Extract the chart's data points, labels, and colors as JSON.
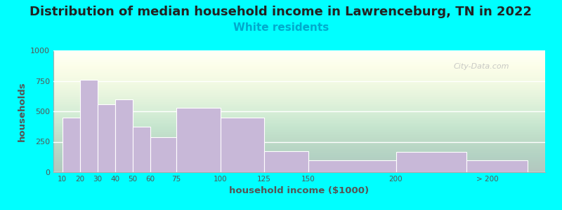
{
  "title": "Distribution of median household income in Lawrenceburg, TN in 2022",
  "subtitle": "White residents",
  "xlabel": "household income ($1000)",
  "ylabel": "households",
  "background_outer": "#00FFFF",
  "bar_color": "#C8B8D8",
  "categories": [
    "10",
    "20",
    "30",
    "40",
    "50",
    "60",
    "75",
    "100",
    "125",
    "150",
    "200",
    "> 200"
  ],
  "values": [
    450,
    760,
    555,
    600,
    375,
    290,
    530,
    450,
    170,
    95,
    165,
    95
  ],
  "ylim": [
    0,
    1000
  ],
  "yticks": [
    0,
    250,
    500,
    750,
    1000
  ],
  "title_fontsize": 13,
  "subtitle_fontsize": 11,
  "subtitle_color": "#00AACC",
  "watermark": "City-Data.com",
  "bar_left_edges": [
    10,
    20,
    30,
    40,
    50,
    60,
    75,
    100,
    125,
    150,
    200,
    240
  ],
  "bar_widths": [
    10,
    10,
    10,
    10,
    10,
    15,
    25,
    25,
    25,
    50,
    40,
    35
  ],
  "xtick_positions": [
    10,
    20,
    30,
    40,
    50,
    60,
    75,
    100,
    125,
    150,
    200,
    252
  ],
  "xlim": [
    5,
    285
  ]
}
